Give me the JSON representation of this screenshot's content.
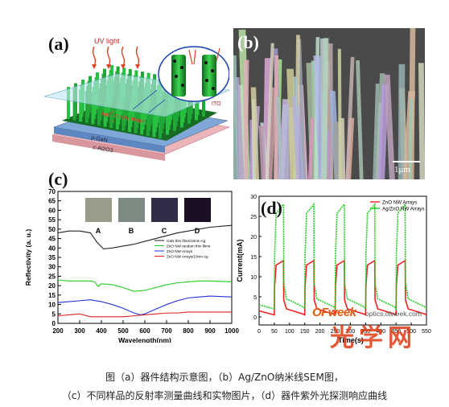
{
  "panel_a": {
    "label": "(a)",
    "uv_label": "UV light",
    "layer_ito": "ITO",
    "layer_zno": "Ag/ZnO NW Arrays",
    "layer_pgan": "p-GaN",
    "layer_substrate": "c-Al2O3"
  },
  "panel_b": {
    "label": "(b)",
    "scale_bar": "1μm"
  },
  "panel_c": {
    "label": "(c)",
    "photo_labels": [
      "A",
      "B",
      "C",
      "D"
    ],
    "photo_colors": [
      "#9a9c8a",
      "#7d8a82",
      "#2e2d45",
      "#1b1023"
    ],
    "colors": {
      "gan": "#222222",
      "random": "#22cc22",
      "nw": "#2233dd",
      "nwag": "#dd2222"
    }
  },
  "panel_d": {
    "label": "(d)",
    "colors": {
      "zno": "#ee2222",
      "agzno": "#22cc22"
    }
  },
  "watermark": {
    "brand": "OFweek",
    "url": "optics.ofweek.com",
    "big_text": "光学网"
  },
  "caption": {
    "line1": "图（a）器件结构示意图，（b）Ag/ZnO纳米线SEM图，",
    "line2": "（c）不同样品的反射率测量曲线和实物图片，（d）器件紫外光探测响应曲线"
  },
  "chart_data": [
    {
      "type": "line",
      "panel": "c",
      "title": "",
      "xlabel": "Wavelength(nm)",
      "ylabel": "Reflectivity (a. u.)",
      "xlim": [
        200,
        1000
      ],
      "ylim": [
        0,
        70
      ],
      "xticks": [
        200,
        300,
        400,
        500,
        600,
        700,
        800,
        900,
        1000
      ],
      "yticks": [
        0,
        5,
        10,
        15,
        20,
        25,
        30,
        35,
        40,
        45,
        50,
        55,
        60,
        65,
        70
      ],
      "grid": false,
      "legend_position": "top-right",
      "series": [
        {
          "name": "GaN thin films/10nm Ag",
          "x": [
            200,
            250,
            300,
            350,
            380,
            410,
            450,
            500,
            550,
            600,
            650,
            700,
            750,
            800,
            850,
            900,
            950,
            1000
          ],
          "y": [
            48,
            49,
            49,
            48,
            43,
            39.5,
            40,
            41,
            42,
            43.5,
            45,
            46.5,
            48,
            49,
            50,
            51,
            51.5,
            52
          ]
        },
        {
          "name": "ZnO NW random thin films",
          "x": [
            200,
            250,
            300,
            350,
            370,
            385,
            400,
            450,
            500,
            550,
            600,
            650,
            700,
            750,
            800,
            850,
            900,
            1000
          ],
          "y": [
            23,
            22.5,
            22.5,
            22.5,
            22,
            19.5,
            21,
            20.5,
            19,
            17,
            17.5,
            19,
            20.5,
            21.5,
            22,
            22.5,
            22.5,
            22
          ]
        },
        {
          "name": "ZnO NW Arrays",
          "x": [
            200,
            250,
            300,
            350,
            400,
            450,
            500,
            550,
            580,
            600,
            650,
            700,
            750,
            800,
            850,
            900,
            1000
          ],
          "y": [
            11,
            11.5,
            12,
            12.5,
            11.5,
            10,
            8,
            5.5,
            4.5,
            5,
            7.5,
            10,
            12,
            13.5,
            14,
            14.5,
            14
          ]
        },
        {
          "name": "ZnO NW Arrays/10nm Ag",
          "x": [
            200,
            250,
            300,
            350,
            400,
            450,
            500,
            550,
            600,
            650,
            700,
            750,
            800,
            850,
            900,
            950,
            1000
          ],
          "y": [
            4,
            4.5,
            5,
            3.5,
            3.5,
            3.5,
            3.5,
            4,
            4.5,
            5,
            5.5,
            5.5,
            6,
            6,
            6,
            6,
            6
          ]
        }
      ]
    },
    {
      "type": "line",
      "panel": "d",
      "title": "",
      "xlabel": "Time(s)",
      "ylabel": "Current(mA)",
      "xlim": [
        0,
        550
      ],
      "ylim": [
        -2,
        30
      ],
      "xticks": [
        0,
        50,
        100,
        150,
        200,
        250,
        300,
        350,
        400,
        450,
        500,
        550
      ],
      "yticks": [
        0,
        5,
        10,
        15,
        20,
        25,
        30
      ],
      "grid": false,
      "legend_position": "top-right",
      "series": [
        {
          "name": "ZnO NW Arrays",
          "on_times": [
            50,
            150,
            250,
            350,
            450
          ],
          "on_duration": 30,
          "peak": 14,
          "baseline": 0.5
        },
        {
          "name": "Ag/ZnO NW Arrays",
          "on_times": [
            50,
            150,
            250,
            350,
            450
          ],
          "on_duration": 30,
          "peak": 28,
          "baseline": 2
        }
      ]
    }
  ]
}
